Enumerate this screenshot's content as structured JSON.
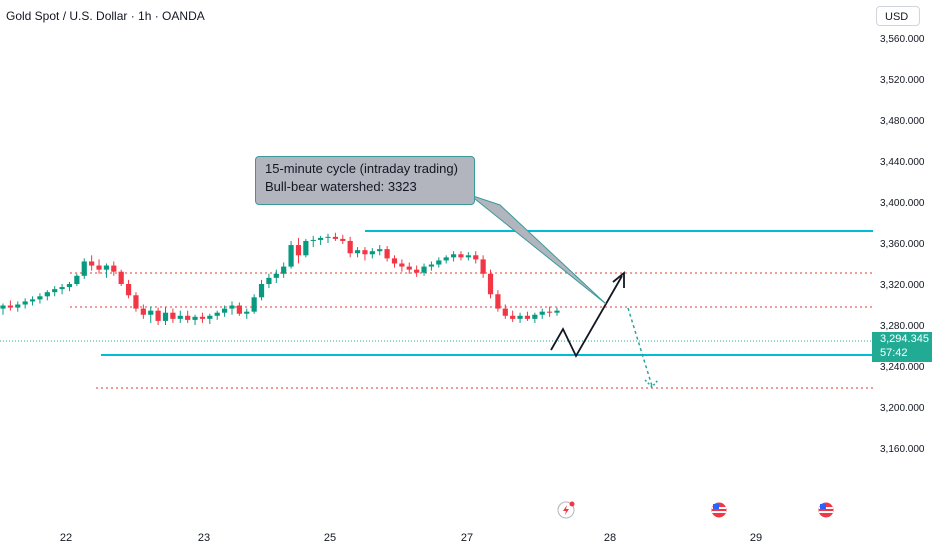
{
  "title": "Gold Spot / U.S. Dollar · 1h · OANDA",
  "currency": "USD",
  "current_price": {
    "value": "3,294.345",
    "countdown": "57:42",
    "color": "#22ab94"
  },
  "callout": {
    "line1": "15-minute cycle (intraday trading)",
    "line2": "Bull-bear watershed: 3323"
  },
  "colors": {
    "up": "#089981",
    "down": "#f23645",
    "level": "#00bcd4",
    "dotted": "#e53935",
    "projection": "#131722",
    "alt_projection": "#26a69a"
  },
  "icons": [
    "lightning-event-icon",
    "us-flag-event-icon",
    "us-flag-event-icon"
  ],
  "chart_data": {
    "type": "candlestick",
    "title": "Gold Spot / U.S. Dollar · 1h · OANDA",
    "y_ticks": [
      "3,560.000",
      "3,520.000",
      "3,480.000",
      "3,440.000",
      "3,400.000",
      "3,360.000",
      "3,320.000",
      "3,280.000",
      "3,240.000",
      "3,200.000",
      "3,160.000"
    ],
    "y_tick_values": [
      3560,
      3520,
      3480,
      3440,
      3400,
      3360,
      3320,
      3280,
      3240,
      3200,
      3160
    ],
    "ylim": [
      3122,
      3580
    ],
    "x_ticks": [
      "22",
      "23",
      "25",
      "27",
      "28",
      "29"
    ],
    "x_tick_dates": [
      "2025-05-22",
      "2025-05-23",
      "2025-05-25",
      "2025-05-27",
      "2025-05-28",
      "2025-05-29"
    ],
    "grid": false,
    "ohlc": [
      [
        3296,
        3301,
        3290,
        3299
      ],
      [
        3299,
        3304,
        3294,
        3297
      ],
      [
        3297,
        3303,
        3293,
        3300
      ],
      [
        3300,
        3306,
        3296,
        3303
      ],
      [
        3303,
        3308,
        3299,
        3305
      ],
      [
        3305,
        3311,
        3301,
        3308
      ],
      [
        3308,
        3314,
        3304,
        3312
      ],
      [
        3312,
        3318,
        3308,
        3315
      ],
      [
        3315,
        3320,
        3310,
        3317
      ],
      [
        3317,
        3322,
        3313,
        3320
      ],
      [
        3320,
        3330,
        3318,
        3328
      ],
      [
        3328,
        3345,
        3325,
        3342
      ],
      [
        3342,
        3348,
        3333,
        3338
      ],
      [
        3338,
        3344,
        3330,
        3334
      ],
      [
        3334,
        3340,
        3326,
        3338
      ],
      [
        3338,
        3342,
        3328,
        3332
      ],
      [
        3332,
        3334,
        3318,
        3320
      ],
      [
        3320,
        3324,
        3306,
        3309
      ],
      [
        3309,
        3312,
        3293,
        3296
      ],
      [
        3296,
        3300,
        3286,
        3290
      ],
      [
        3290,
        3298,
        3282,
        3294
      ],
      [
        3294,
        3297,
        3280,
        3284
      ],
      [
        3284,
        3298,
        3280,
        3292
      ],
      [
        3292,
        3296,
        3282,
        3286
      ],
      [
        3286,
        3294,
        3282,
        3289
      ],
      [
        3289,
        3294,
        3282,
        3285
      ],
      [
        3285,
        3290,
        3280,
        3288
      ],
      [
        3288,
        3292,
        3282,
        3286
      ],
      [
        3286,
        3291,
        3281,
        3289
      ],
      [
        3289,
        3294,
        3285,
        3292
      ],
      [
        3292,
        3299,
        3288,
        3296
      ],
      [
        3296,
        3303,
        3290,
        3299
      ],
      [
        3299,
        3302,
        3289,
        3291
      ],
      [
        3291,
        3296,
        3286,
        3293
      ],
      [
        3293,
        3310,
        3291,
        3307
      ],
      [
        3307,
        3324,
        3304,
        3320
      ],
      [
        3320,
        3330,
        3316,
        3326
      ],
      [
        3326,
        3334,
        3321,
        3330
      ],
      [
        3330,
        3341,
        3326,
        3337
      ],
      [
        3337,
        3362,
        3335,
        3358
      ],
      [
        3358,
        3365,
        3340,
        3348
      ],
      [
        3348,
        3364,
        3346,
        3362
      ],
      [
        3362,
        3367,
        3356,
        3363
      ],
      [
        3363,
        3367,
        3358,
        3365
      ],
      [
        3365,
        3369,
        3360,
        3366
      ],
      [
        3366,
        3370,
        3362,
        3364
      ],
      [
        3364,
        3368,
        3359,
        3362
      ],
      [
        3362,
        3366,
        3346,
        3350
      ],
      [
        3350,
        3356,
        3346,
        3353
      ],
      [
        3353,
        3356,
        3343,
        3349
      ],
      [
        3349,
        3355,
        3345,
        3352
      ],
      [
        3352,
        3358,
        3348,
        3354
      ],
      [
        3354,
        3357,
        3342,
        3345
      ],
      [
        3345,
        3348,
        3336,
        3340
      ],
      [
        3340,
        3344,
        3332,
        3337
      ],
      [
        3337,
        3341,
        3330,
        3334
      ],
      [
        3334,
        3338,
        3327,
        3331
      ],
      [
        3331,
        3340,
        3328,
        3337
      ],
      [
        3337,
        3342,
        3333,
        3339
      ],
      [
        3339,
        3346,
        3336,
        3343
      ],
      [
        3343,
        3348,
        3340,
        3346
      ],
      [
        3346,
        3352,
        3342,
        3349
      ],
      [
        3349,
        3352,
        3343,
        3346
      ],
      [
        3346,
        3351,
        3343,
        3348
      ],
      [
        3348,
        3352,
        3340,
        3344
      ],
      [
        3344,
        3348,
        3326,
        3330
      ],
      [
        3330,
        3334,
        3306,
        3310
      ],
      [
        3310,
        3314,
        3293,
        3296
      ],
      [
        3296,
        3300,
        3286,
        3289
      ],
      [
        3289,
        3294,
        3283,
        3286
      ],
      [
        3286,
        3292,
        3282,
        3289
      ],
      [
        3289,
        3293,
        3284,
        3286
      ],
      [
        3286,
        3292,
        3282,
        3290
      ],
      [
        3290,
        3296,
        3286,
        3293
      ],
      [
        3293,
        3298,
        3288,
        3292
      ],
      [
        3292,
        3297,
        3289,
        3294
      ]
    ],
    "annotations": {
      "horizontal_levels": [
        {
          "price": 3387,
          "style": "solid",
          "color": "#00bcd4",
          "label": ""
        },
        {
          "price": 3281,
          "style": "solid",
          "color": "#00bcd4",
          "label": ""
        },
        {
          "price": 3351,
          "style": "dotted",
          "color": "#e53935",
          "label": ""
        },
        {
          "price": 3323,
          "style": "dotted",
          "color": "#e53935",
          "label": ""
        },
        {
          "price": 3257,
          "style": "dotted",
          "color": "#e53935",
          "label": ""
        }
      ],
      "projected_path": [
        3291,
        3304,
        3280,
        3351
      ],
      "alternate_path": [
        3323,
        3255
      ],
      "callout": "15-minute cycle (intraday trading) / Bull-bear watershed: 3323"
    }
  }
}
